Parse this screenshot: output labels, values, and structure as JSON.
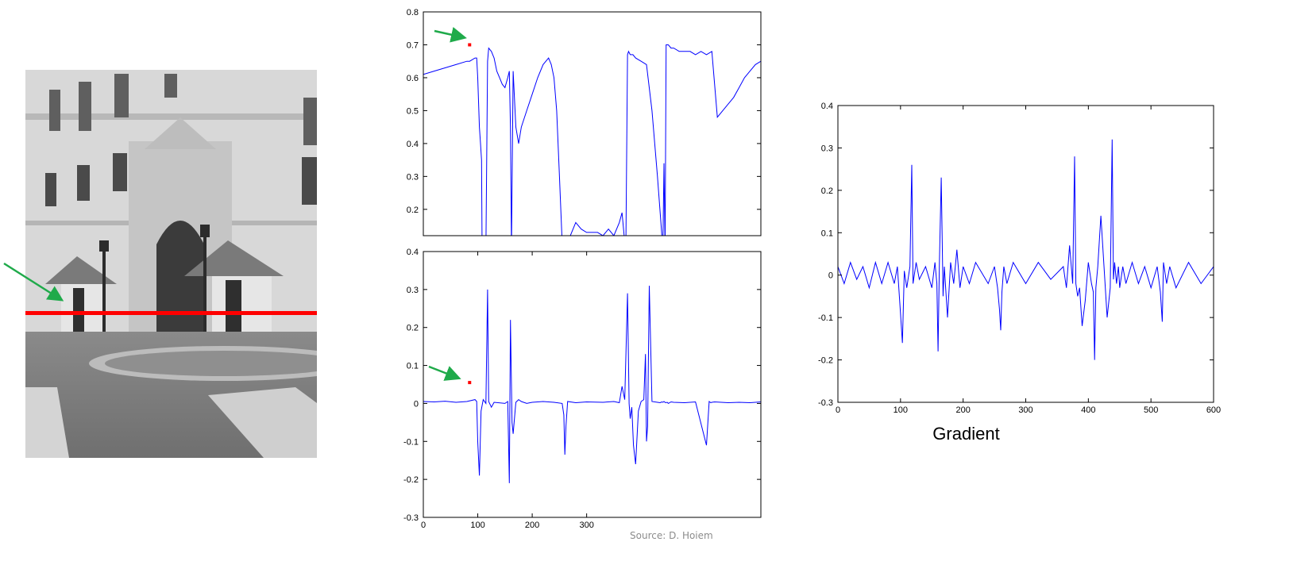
{
  "colors": {
    "signal": "#0000ff",
    "scanline": "#ff0000",
    "arrow": "#1faa4a",
    "axis": "#000000",
    "highlight_point": "#ff0000"
  },
  "photo": {
    "description": "grayscale photograph of palace facade with guard booths",
    "scanline_overlay": true,
    "arrow_marker": true
  },
  "source_label": "Source: D. Hoiem",
  "chart_data": [
    {
      "type": "line",
      "id": "intensity-profile",
      "title": "",
      "xlabel": "",
      "ylabel": "",
      "ylim": [
        0.12,
        0.8
      ],
      "xlim": [
        0,
        620
      ],
      "y_ticks": [
        "0.2",
        "0.3",
        "0.4",
        "0.5",
        "0.6",
        "0.7",
        "0.8"
      ],
      "x_ticks": [],
      "annotation_point": {
        "x": 85,
        "y": 0.7
      },
      "series": [
        {
          "x": [
            0,
            20,
            40,
            60,
            80,
            85,
            95,
            98,
            100,
            103,
            105,
            107,
            108,
            115,
            118,
            120,
            125,
            130,
            135,
            140,
            145,
            150,
            155,
            158,
            160,
            162,
            165,
            170,
            175,
            180,
            190,
            200,
            210,
            220,
            230,
            235,
            240,
            245,
            250,
            255,
            258,
            260,
            265,
            270,
            280,
            290,
            300,
            310,
            320,
            330,
            340,
            350,
            360,
            365,
            370,
            372,
            375,
            377,
            380,
            385,
            390,
            400,
            410,
            420,
            430,
            440,
            442,
            444,
            446,
            450,
            455,
            460,
            470,
            480,
            490,
            500,
            510,
            520,
            530,
            540,
            550,
            560,
            570,
            580,
            590,
            600,
            610,
            620
          ],
          "y": [
            0.61,
            0.62,
            0.63,
            0.64,
            0.65,
            0.65,
            0.66,
            0.66,
            0.6,
            0.45,
            0.4,
            0.35,
            0.08,
            0.08,
            0.65,
            0.69,
            0.68,
            0.66,
            0.62,
            0.6,
            0.58,
            0.57,
            0.6,
            0.62,
            0.45,
            0.08,
            0.62,
            0.45,
            0.4,
            0.45,
            0.5,
            0.55,
            0.6,
            0.64,
            0.66,
            0.64,
            0.6,
            0.5,
            0.3,
            0.1,
            0.08,
            0.08,
            0.1,
            0.12,
            0.16,
            0.14,
            0.13,
            0.13,
            0.13,
            0.12,
            0.14,
            0.12,
            0.16,
            0.19,
            0.1,
            0.08,
            0.67,
            0.68,
            0.67,
            0.67,
            0.66,
            0.65,
            0.64,
            0.5,
            0.3,
            0.08,
            0.34,
            0.08,
            0.7,
            0.7,
            0.69,
            0.69,
            0.68,
            0.68,
            0.68,
            0.67,
            0.68,
            0.67,
            0.68,
            0.48,
            0.5,
            0.52,
            0.54,
            0.57,
            0.6,
            0.62,
            0.64,
            0.65
          ]
        }
      ]
    },
    {
      "type": "line",
      "id": "derivative-profile",
      "title": "",
      "xlabel": "",
      "ylabel": "",
      "ylim": [
        -0.3,
        0.4
      ],
      "xlim": [
        0,
        620
      ],
      "x_ticks": [
        "0",
        "100",
        "200",
        "300"
      ],
      "y_ticks": [
        "-0.3",
        "-0.2",
        "-0.1",
        "0",
        "0.1",
        "0.2",
        "0.3",
        "0.4"
      ],
      "annotation_point": {
        "x": 85,
        "y": 0.055
      },
      "series": [
        {
          "x": [
            0,
            20,
            40,
            60,
            80,
            95,
            98,
            100,
            103,
            106,
            110,
            115,
            118,
            120,
            125,
            130,
            150,
            155,
            158,
            160,
            163,
            165,
            170,
            175,
            180,
            190,
            200,
            220,
            240,
            255,
            258,
            260,
            262,
            265,
            280,
            300,
            330,
            350,
            360,
            365,
            370,
            375,
            378,
            380,
            383,
            386,
            390,
            395,
            400,
            405,
            408,
            410,
            412,
            415,
            420,
            430,
            435,
            438,
            440,
            442,
            445,
            448,
            450,
            455,
            460,
            480,
            500,
            520,
            525,
            528,
            530,
            535,
            560,
            580,
            600,
            620
          ],
          "y": [
            0.005,
            0.004,
            0.006,
            0.003,
            0.005,
            0.01,
            0.005,
            -0.1,
            -0.19,
            -0.02,
            0.01,
            0.0,
            0.3,
            0.005,
            -0.01,
            0.003,
            0.0,
            0.005,
            -0.21,
            0.22,
            -0.05,
            -0.08,
            0.003,
            0.01,
            0.005,
            0.0,
            0.003,
            0.005,
            0.003,
            0.0,
            -0.03,
            -0.135,
            -0.06,
            0.005,
            0.002,
            0.004,
            0.003,
            0.005,
            0.002,
            0.045,
            0.01,
            0.29,
            0.0,
            -0.04,
            -0.01,
            -0.11,
            -0.16,
            -0.02,
            0.005,
            0.01,
            0.13,
            -0.1,
            -0.06,
            0.31,
            0.005,
            0.003,
            0.002,
            0.004,
            0.003,
            0.005,
            0.002,
            0.003,
            0.0,
            0.004,
            0.003,
            0.002,
            0.004,
            -0.11,
            0.005,
            0.002,
            0.003,
            0.004,
            0.002,
            0.003,
            0.002,
            0.004
          ]
        }
      ]
    },
    {
      "type": "line",
      "id": "gradient-chart",
      "title": "",
      "xlabel": "Gradient",
      "ylabel": "",
      "ylim": [
        -0.3,
        0.4
      ],
      "xlim": [
        0,
        600
      ],
      "x_ticks": [
        "0",
        "100",
        "200",
        "300",
        "400",
        "500",
        "600"
      ],
      "y_ticks": [
        "-0.3",
        "-0.2",
        "-0.1",
        "0",
        "0.1",
        "0.2",
        "0.3",
        "0.4"
      ],
      "series": [
        {
          "x": [
            0,
            10,
            20,
            30,
            40,
            50,
            60,
            70,
            80,
            90,
            95,
            100,
            103,
            106,
            110,
            115,
            118,
            120,
            125,
            130,
            140,
            150,
            155,
            158,
            160,
            162,
            165,
            168,
            170,
            175,
            180,
            185,
            190,
            195,
            200,
            210,
            220,
            240,
            250,
            255,
            258,
            260,
            262,
            265,
            270,
            280,
            300,
            320,
            340,
            360,
            365,
            370,
            375,
            378,
            380,
            383,
            386,
            390,
            395,
            400,
            405,
            408,
            410,
            412,
            415,
            420,
            430,
            435,
            438,
            440,
            442,
            445,
            448,
            450,
            455,
            460,
            470,
            480,
            490,
            500,
            510,
            515,
            518,
            520,
            525,
            530,
            540,
            560,
            580,
            600
          ],
          "y": [
            0.02,
            -0.02,
            0.03,
            -0.01,
            0.02,
            -0.03,
            0.03,
            -0.02,
            0.03,
            -0.02,
            0.02,
            -0.09,
            -0.16,
            0.01,
            -0.03,
            0.02,
            0.26,
            -0.02,
            0.03,
            -0.01,
            0.02,
            -0.03,
            0.03,
            -0.02,
            -0.18,
            0.02,
            0.23,
            -0.05,
            0.02,
            -0.1,
            0.03,
            -0.02,
            0.06,
            -0.03,
            0.02,
            -0.02,
            0.03,
            -0.02,
            0.02,
            -0.03,
            -0.08,
            -0.13,
            -0.04,
            0.02,
            -0.02,
            0.03,
            -0.02,
            0.03,
            -0.01,
            0.02,
            -0.03,
            0.07,
            -0.02,
            0.28,
            -0.02,
            -0.05,
            -0.03,
            -0.12,
            -0.06,
            0.03,
            -0.02,
            -0.04,
            -0.2,
            -0.03,
            0.02,
            0.14,
            -0.1,
            -0.03,
            0.32,
            -0.01,
            0.03,
            -0.02,
            0.02,
            -0.03,
            0.02,
            -0.02,
            0.03,
            -0.02,
            0.02,
            -0.03,
            0.02,
            -0.04,
            -0.11,
            0.03,
            -0.02,
            0.02,
            -0.03,
            0.03,
            -0.02,
            0.02
          ]
        }
      ]
    }
  ]
}
